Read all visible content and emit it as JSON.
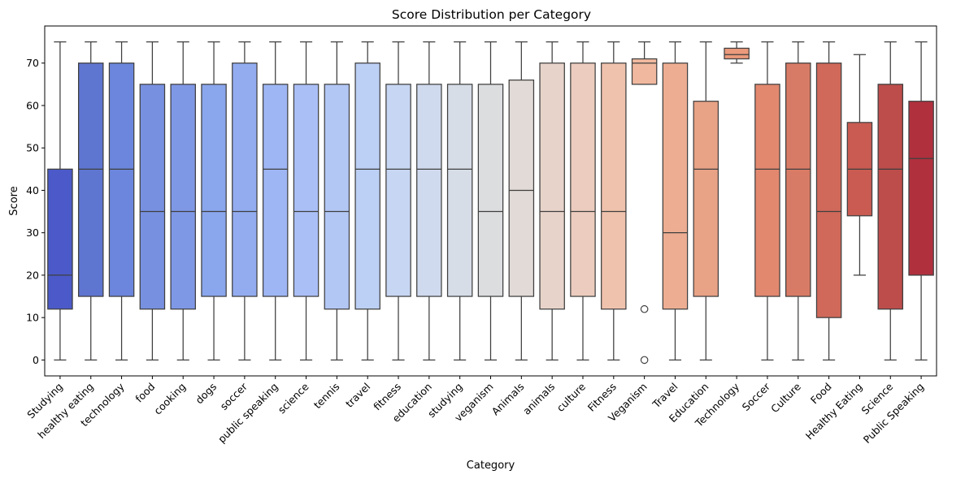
{
  "chart_data": {
    "type": "box",
    "title": "Score Distribution per Category",
    "xlabel": "Category",
    "ylabel": "Score",
    "ylim": [
      -3.75,
      78.75
    ],
    "yticks": [
      0,
      10,
      20,
      30,
      40,
      50,
      60,
      70
    ],
    "grid": false,
    "legend": "none",
    "palette": "coolwarm",
    "categories": [
      "Studying",
      "healthy eating",
      "technology",
      "food",
      "cooking",
      "dogs",
      "soccer",
      "public speaking",
      "science",
      "tennis",
      "travel",
      "fitness",
      "education",
      "studying",
      "veganism",
      "Animals",
      "animals",
      "culture",
      "Fitness",
      "Veganism",
      "Travel",
      "Education",
      "Technology",
      "Soccer",
      "Culture",
      "Food",
      "Healthy Eating",
      "Science",
      "Public Speaking"
    ],
    "boxes": [
      {
        "category": "Studying",
        "whisker_low": 0,
        "q1": 12,
        "median": 20,
        "q3": 45,
        "whisker_high": 75,
        "outliers": [],
        "color": "#4b5ac8"
      },
      {
        "category": "healthy eating",
        "whisker_low": 0,
        "q1": 15,
        "median": 45,
        "q3": 70,
        "whisker_high": 75,
        "outliers": [],
        "color": "#5f76d0"
      },
      {
        "category": "technology",
        "whisker_low": 0,
        "q1": 15,
        "median": 45,
        "q3": 70,
        "whisker_high": 75,
        "outliers": [],
        "color": "#6b86dc"
      },
      {
        "category": "food",
        "whisker_low": 0,
        "q1": 12,
        "median": 35,
        "q3": 65,
        "whisker_high": 75,
        "outliers": [],
        "color": "#7790e0"
      },
      {
        "category": "cooking",
        "whisker_low": 0,
        "q1": 12,
        "median": 35,
        "q3": 65,
        "whisker_high": 75,
        "outliers": [],
        "color": "#7f98e6"
      },
      {
        "category": "dogs",
        "whisker_low": 0,
        "q1": 15,
        "median": 35,
        "q3": 65,
        "whisker_high": 75,
        "outliers": [],
        "color": "#8aa6ec"
      },
      {
        "category": "soccer",
        "whisker_low": 0,
        "q1": 15,
        "median": 35,
        "q3": 70,
        "whisker_high": 75,
        "outliers": [],
        "color": "#93acf0"
      },
      {
        "category": "public speaking",
        "whisker_low": 0,
        "q1": 15,
        "median": 45,
        "q3": 65,
        "whisker_high": 75,
        "outliers": [],
        "color": "#9eb6f4"
      },
      {
        "category": "science",
        "whisker_low": 0,
        "q1": 15,
        "median": 35,
        "q3": 65,
        "whisker_high": 75,
        "outliers": [],
        "color": "#aabff6"
      },
      {
        "category": "tennis",
        "whisker_low": 0,
        "q1": 12,
        "median": 35,
        "q3": 65,
        "whisker_high": 75,
        "outliers": [],
        "color": "#b3c7f5"
      },
      {
        "category": "travel",
        "whisker_low": 0,
        "q1": 12,
        "median": 45,
        "q3": 70,
        "whisker_high": 75,
        "outliers": [],
        "color": "#bccff4"
      },
      {
        "category": "fitness",
        "whisker_low": 0,
        "q1": 15,
        "median": 45,
        "q3": 65,
        "whisker_high": 75,
        "outliers": [],
        "color": "#c7d6f2"
      },
      {
        "category": "education",
        "whisker_low": 0,
        "q1": 15,
        "median": 45,
        "q3": 65,
        "whisker_high": 75,
        "outliers": [],
        "color": "#d0daee"
      },
      {
        "category": "studying",
        "whisker_low": 0,
        "q1": 15,
        "median": 45,
        "q3": 65,
        "whisker_high": 75,
        "outliers": [],
        "color": "#d6dde7"
      },
      {
        "category": "veganism",
        "whisker_low": 0,
        "q1": 15,
        "median": 35,
        "q3": 65,
        "whisker_high": 75,
        "outliers": [],
        "color": "#dcdddf"
      },
      {
        "category": "Animals",
        "whisker_low": 0,
        "q1": 15,
        "median": 40,
        "q3": 66,
        "whisker_high": 75,
        "outliers": [],
        "color": "#e2dad6"
      },
      {
        "category": "animals",
        "whisker_low": 0,
        "q1": 12,
        "median": 35,
        "q3": 70,
        "whisker_high": 75,
        "outliers": [],
        "color": "#e8d3ca"
      },
      {
        "category": "culture",
        "whisker_low": 0,
        "q1": 15,
        "median": 35,
        "q3": 70,
        "whisker_high": 75,
        "outliers": [],
        "color": "#ecccbe"
      },
      {
        "category": "Fitness",
        "whisker_low": 0,
        "q1": 12,
        "median": 35,
        "q3": 70,
        "whisker_high": 75,
        "outliers": [],
        "color": "#efc2ad"
      },
      {
        "category": "Veganism",
        "whisker_low": 65,
        "q1": 65,
        "median": 70,
        "q3": 71,
        "whisker_high": 75,
        "outliers": [
          12,
          0
        ],
        "color": "#f0b99f"
      },
      {
        "category": "Travel",
        "whisker_low": 0,
        "q1": 12,
        "median": 30,
        "q3": 70,
        "whisker_high": 75,
        "outliers": [],
        "color": "#edad92"
      },
      {
        "category": "Education",
        "whisker_low": 0,
        "q1": 15,
        "median": 45,
        "q3": 61,
        "whisker_high": 75,
        "outliers": [],
        "color": "#e8a285"
      },
      {
        "category": "Technology",
        "whisker_low": 70,
        "q1": 71,
        "median": 72,
        "q3": 73.5,
        "whisker_high": 75,
        "outliers": [],
        "color": "#eb9a7c"
      },
      {
        "category": "Soccer",
        "whisker_low": 0,
        "q1": 15,
        "median": 45,
        "q3": 65,
        "whisker_high": 75,
        "outliers": [],
        "color": "#e2886f"
      },
      {
        "category": "Culture",
        "whisker_low": 0,
        "q1": 15,
        "median": 45,
        "q3": 70,
        "whisker_high": 75,
        "outliers": [],
        "color": "#d87b66"
      },
      {
        "category": "Food",
        "whisker_low": 0,
        "q1": 10,
        "median": 35,
        "q3": 70,
        "whisker_high": 75,
        "outliers": [],
        "color": "#d0695a"
      },
      {
        "category": "Healthy Eating",
        "whisker_low": 20,
        "q1": 34,
        "median": 45,
        "q3": 56,
        "whisker_high": 72,
        "outliers": [],
        "color": "#c95b52"
      },
      {
        "category": "Science",
        "whisker_low": 0,
        "q1": 12,
        "median": 45,
        "q3": 65,
        "whisker_high": 75,
        "outliers": [],
        "color": "#bc4d4b"
      },
      {
        "category": "Public Speaking",
        "whisker_low": 0,
        "q1": 20,
        "median": 47.5,
        "q3": 61,
        "whisker_high": 75,
        "outliers": [],
        "color": "#b0303e"
      }
    ]
  }
}
